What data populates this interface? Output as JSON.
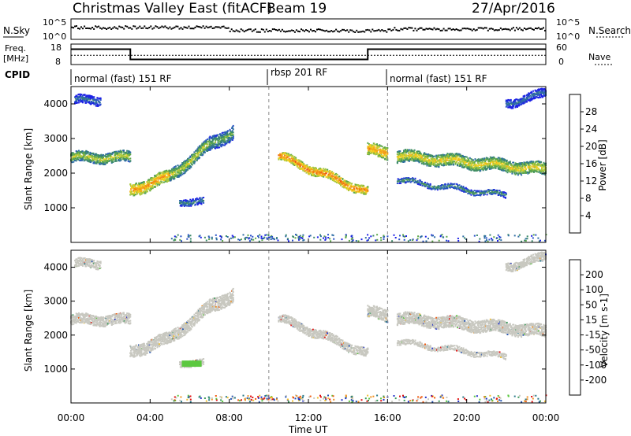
{
  "header": {
    "title": "Christmas Valley East (fitACF)",
    "beam": "Beam 19",
    "date": "27/Apr/2016"
  },
  "top_panels": {
    "nsky_label": "N.Sky",
    "nsky_left_ticks": [
      "10^5",
      "10^0"
    ],
    "nsky_right_ticks": [
      "10^5",
      "10^0"
    ],
    "nsearch_label": "N.Search",
    "freq_label_1": "Freq.",
    "freq_label_2": "[MHz]",
    "freq_left_ticks": [
      "18",
      "8"
    ],
    "freq_right_ticks": [
      "60",
      "0"
    ],
    "nave_label": "Nave",
    "cpid_label": "CPID",
    "cpid_modes": [
      "normal (fast) 151 RF",
      "rbsp 201 RF",
      "normal (fast) 151 RF"
    ]
  },
  "colors": {
    "power_scale": [
      "#1d20e6",
      "#2850c8",
      "#2f6ea4",
      "#3c8a6a",
      "#5ea84a",
      "#a8c840",
      "#f0d020",
      "#f4a818",
      "#f07818",
      "#e84018",
      "#e01010"
    ],
    "velocity_scale": [
      "#e01010",
      "#f05a10",
      "#f09020",
      "#f0c030",
      "#c8c8c0",
      "#c8c8c0",
      "#5cc840",
      "#3a9a5a",
      "#2a7a8a",
      "#2050b0",
      "#2030c8"
    ],
    "gray": "#c8c8c0",
    "dashed": "#888888"
  },
  "chart_data": [
    {
      "type": "heatmap",
      "panel": "power",
      "ylabel": "Slant Range [km]",
      "ylim": [
        0,
        4500
      ],
      "yticks": [
        1000,
        2000,
        3000,
        4000
      ],
      "xlim": [
        0,
        24
      ],
      "colorbar_label": "Power [dB]",
      "colorbar_range": [
        0,
        32
      ],
      "colorbar_ticks": [
        "4",
        "8",
        "12",
        "16",
        "20",
        "24",
        "28"
      ],
      "mode_boundaries_ut": [
        10,
        16
      ],
      "bands": [
        {
          "t": [
            0.0,
            3.0
          ],
          "r0": 2450,
          "r1": 2450,
          "w": 300,
          "p": 18
        },
        {
          "t": [
            3.0,
            5.0
          ],
          "r0": 1500,
          "r1": 1900,
          "w": 350,
          "p": 24
        },
        {
          "t": [
            5.0,
            7.0
          ],
          "r0": 1900,
          "r1": 2800,
          "w": 350,
          "p": 18
        },
        {
          "t": [
            7.0,
            8.2
          ],
          "r0": 2800,
          "r1": 3200,
          "w": 400,
          "p": 14
        },
        {
          "t": [
            10.5,
            15.0
          ],
          "r0": 2500,
          "r1": 1450,
          "w": 250,
          "p": 26
        },
        {
          "t": [
            15.0,
            16.0
          ],
          "r0": 2650,
          "r1": 2600,
          "w": 350,
          "p": 24
        },
        {
          "t": [
            16.5,
            24.0
          ],
          "r0": 2500,
          "r1": 2100,
          "w": 350,
          "p": 20
        },
        {
          "t": [
            16.5,
            22.0
          ],
          "r0": 1800,
          "r1": 1350,
          "w": 150,
          "p": 12
        },
        {
          "t": [
            5.5,
            6.7
          ],
          "r0": 1200,
          "r1": 1150,
          "w": 200,
          "p": 10
        },
        {
          "t": [
            0.2,
            1.5
          ],
          "r0": 4100,
          "r1": 4100,
          "w": 250,
          "p": 8
        },
        {
          "t": [
            22.0,
            24.0
          ],
          "r0": 4000,
          "r1": 4300,
          "w": 250,
          "p": 8
        }
      ]
    },
    {
      "type": "heatmap",
      "panel": "velocity",
      "ylabel": "Slant Range [km]",
      "xlabel": "Time UT",
      "ylim": [
        0,
        4500
      ],
      "yticks": [
        1000,
        2000,
        3000,
        4000
      ],
      "xlim": [
        0,
        24
      ],
      "xticks": [
        "00:00",
        "04:00",
        "08:00",
        "12:00",
        "16:00",
        "20:00",
        "00:00"
      ],
      "colorbar_label": "Velocity [m s-1]",
      "colorbar_ticks": [
        "-200",
        "-100",
        "-50",
        "-15",
        "15",
        "50",
        "100",
        "200"
      ],
      "mode_boundaries_ut": [
        10,
        16
      ],
      "note": "ground scatter (gray) follows the same bands; green patch near 05:30-06:40 UT at ~1150 km"
    }
  ]
}
